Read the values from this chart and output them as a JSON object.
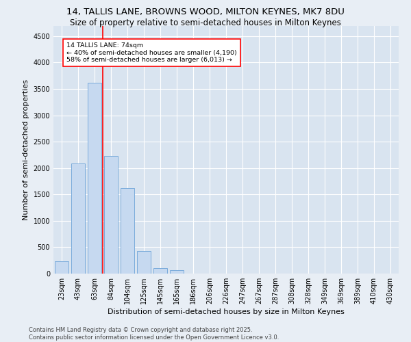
{
  "title1": "14, TALLIS LANE, BROWNS WOOD, MILTON KEYNES, MK7 8DU",
  "title2": "Size of property relative to semi-detached houses in Milton Keynes",
  "xlabel": "Distribution of semi-detached houses by size in Milton Keynes",
  "ylabel": "Number of semi-detached properties",
  "footer": "Contains HM Land Registry data © Crown copyright and database right 2025.\nContains public sector information licensed under the Open Government Licence v3.0.",
  "bar_labels": [
    "23sqm",
    "43sqm",
    "63sqm",
    "84sqm",
    "104sqm",
    "125sqm",
    "145sqm",
    "165sqm",
    "186sqm",
    "206sqm",
    "226sqm",
    "247sqm",
    "267sqm",
    "287sqm",
    "308sqm",
    "328sqm",
    "349sqm",
    "369sqm",
    "389sqm",
    "410sqm",
    "430sqm"
  ],
  "bar_values": [
    230,
    2090,
    3620,
    2230,
    1620,
    430,
    100,
    60,
    0,
    0,
    0,
    0,
    0,
    0,
    0,
    0,
    0,
    0,
    0,
    0,
    0
  ],
  "bar_color": "#c6d9f0",
  "bar_edge_color": "#7aabdb",
  "property_line_x": 2.5,
  "annotation_text": "14 TALLIS LANE: 74sqm\n← 40% of semi-detached houses are smaller (4,190)\n58% of semi-detached houses are larger (6,013) →",
  "annotation_box_color": "white",
  "annotation_box_edge_color": "red",
  "red_line_color": "red",
  "ylim": [
    0,
    4700
  ],
  "yticks": [
    0,
    500,
    1000,
    1500,
    2000,
    2500,
    3000,
    3500,
    4000,
    4500
  ],
  "bg_color": "#e8eef5",
  "plot_bg_color": "#d9e4f0",
  "grid_color": "white",
  "title1_fontsize": 9.5,
  "title2_fontsize": 8.5,
  "xlabel_fontsize": 8,
  "ylabel_fontsize": 8,
  "tick_fontsize": 7,
  "annotation_fontsize": 6.8,
  "footer_fontsize": 6
}
